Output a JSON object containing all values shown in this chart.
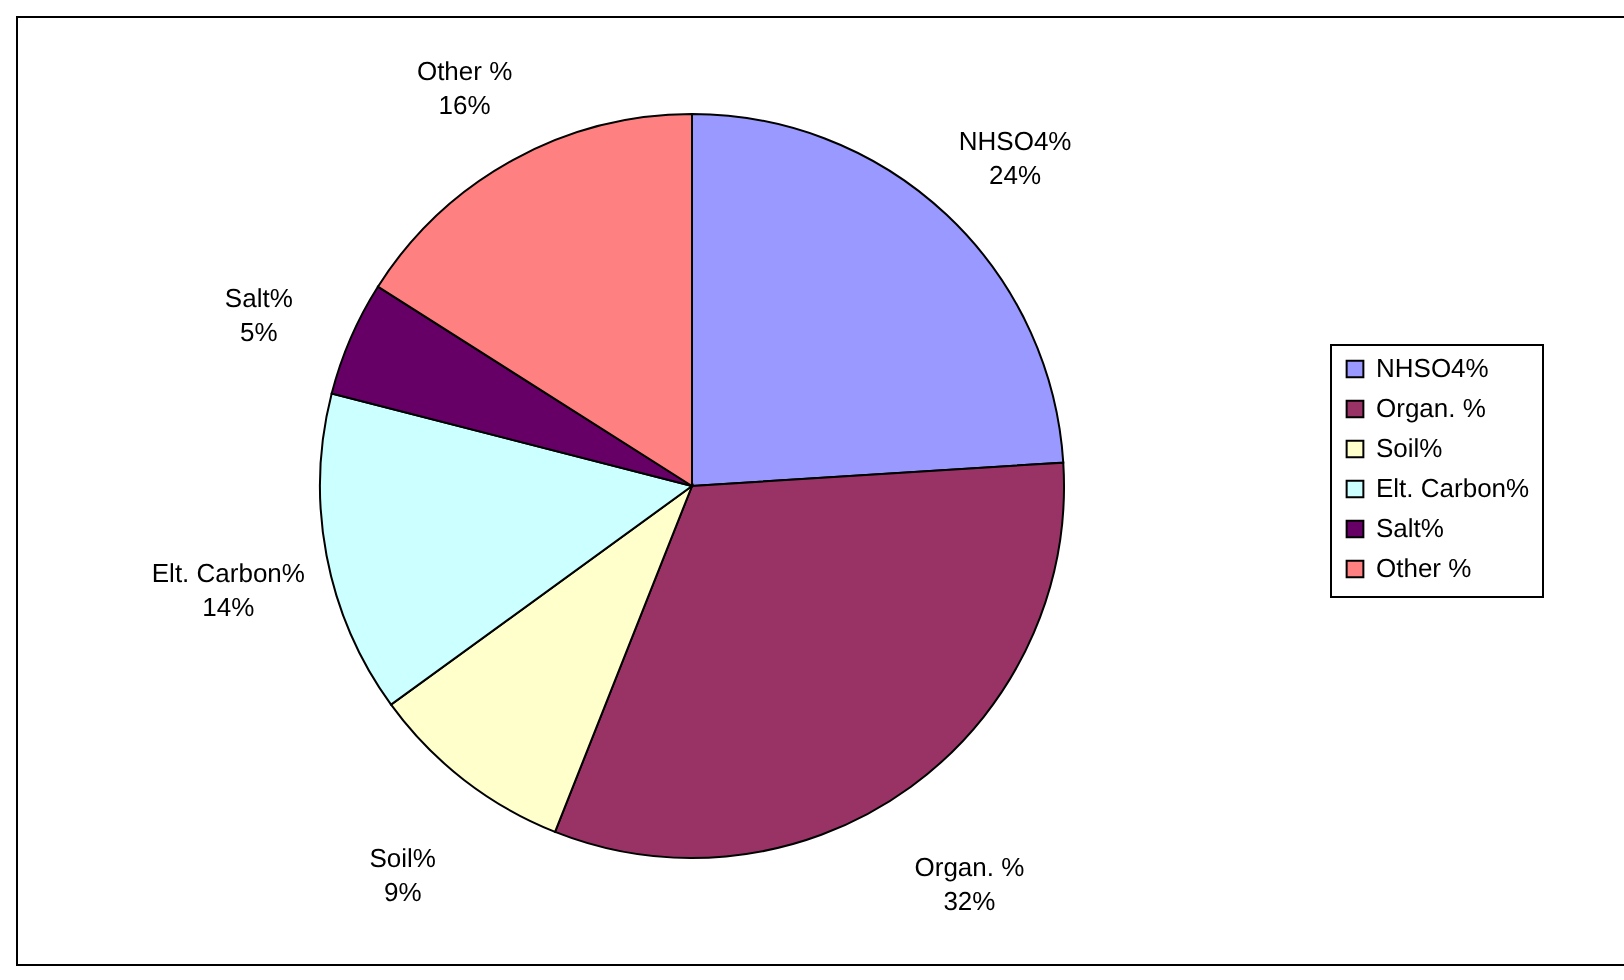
{
  "chart_data": {
    "type": "pie",
    "categories": [
      "NHSO4%",
      "Organ. %",
      "Soil%",
      "Elt. Carbon%",
      "Salt%",
      "Other %"
    ],
    "values": [
      24,
      32,
      9,
      14,
      5,
      16
    ],
    "colors": [
      "#9999ff",
      "#993366",
      "#ffffcc",
      "#ccffff",
      "#660066",
      "#ff8080"
    ],
    "value_labels": [
      "24%",
      "32%",
      "9%",
      "14%",
      "5%",
      "16%"
    ],
    "legend": "right"
  }
}
